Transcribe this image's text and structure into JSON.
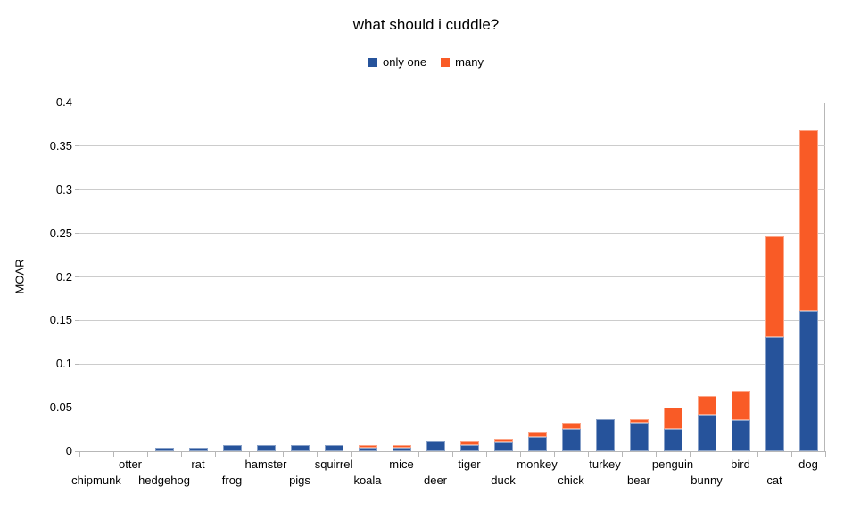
{
  "colors": {
    "series_only_one": "#26539B",
    "series_many": "#F95B26",
    "gridline": "#cccccc",
    "axis": "#b7b7b7",
    "text": "#000000",
    "background": "#ffffff"
  },
  "legend": {
    "items": [
      {
        "label": "only one",
        "color": "#26539B"
      },
      {
        "label": "many",
        "color": "#F95B26"
      }
    ]
  },
  "chart_data": {
    "type": "bar",
    "stacked": true,
    "title": "what should i cuddle?",
    "xlabel": "",
    "ylabel": "MOAR",
    "ylim": [
      0,
      0.4
    ],
    "yticks": [
      0,
      0.05,
      0.1,
      0.15,
      0.2,
      0.25,
      0.3,
      0.35,
      0.4
    ],
    "yticklabels": [
      "0",
      "0.05",
      "0.1",
      "0.15",
      "0.2",
      "0.25",
      "0.3",
      "0.35",
      "0.4"
    ],
    "grid": "horizontal",
    "legend_position": "top",
    "categories": [
      "chipmunk",
      "otter",
      "hedgehog",
      "rat",
      "frog",
      "hamster",
      "pigs",
      "squirrel",
      "koala",
      "mice",
      "deer",
      "tiger",
      "duck",
      "monkey",
      "chick",
      "turkey",
      "bear",
      "penguin",
      "bunny",
      "bird",
      "cat",
      "dog"
    ],
    "series": [
      {
        "name": "only one",
        "color": "#26539B",
        "values": [
          0,
          0,
          0.004,
          0.004,
          0.007,
          0.007,
          0.007,
          0.007,
          0.004,
          0.004,
          0.011,
          0.007,
          0.01,
          0.016,
          0.026,
          0.037,
          0.033,
          0.026,
          0.042,
          0.036,
          0.131,
          0.161
        ]
      },
      {
        "name": "many",
        "color": "#F95B26",
        "values": [
          0,
          0,
          0,
          0,
          0,
          0,
          0,
          0,
          0.003,
          0.003,
          0,
          0.004,
          0.004,
          0.007,
          0.007,
          0,
          0.004,
          0.024,
          0.021,
          0.033,
          0.116,
          0.207
        ]
      }
    ]
  }
}
